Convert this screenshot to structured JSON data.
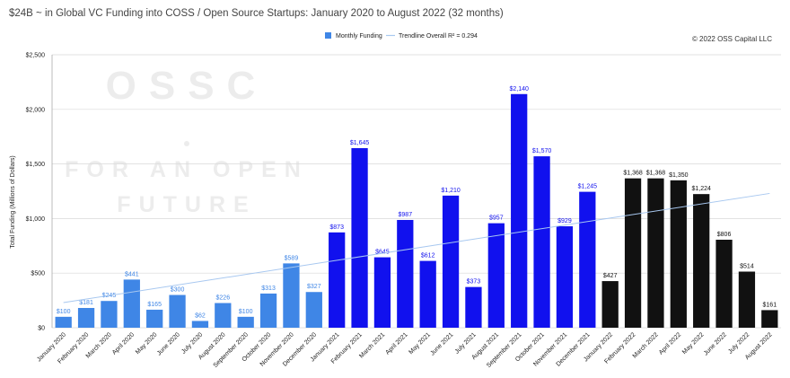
{
  "chart_data": {
    "type": "bar",
    "title": "$24B ~ in Global VC Funding into COSS / Open Source Startups: January 2020 to August 2022 (32 months)",
    "copyright": "© 2022 OSS Capital LLC",
    "ylabel": "Total Funding (Millions of Dollars)",
    "watermark": [
      "OSSC",
      "FOR AN OPEN",
      "FUTURE"
    ],
    "categories": [
      "January 2020",
      "February 2020",
      "March 2020",
      "April 2020",
      "May 2020",
      "June 2020",
      "July 2020",
      "August 2020",
      "September 2020",
      "October 2020",
      "November 2020",
      "December 2020",
      "January 2021",
      "February 2021",
      "March 2021",
      "April 2021",
      "May 2021",
      "June 2021",
      "July 2021",
      "August 2021",
      "September 2021",
      "October 2021",
      "November 2021",
      "December 2021",
      "January 2022",
      "February 2022",
      "March 2022",
      "April 2022",
      "May 2022",
      "June 2022",
      "July 2022",
      "August 2022"
    ],
    "series": [
      {
        "name": "Monthly Funding",
        "color": "#3f86e6",
        "values": [
          100,
          181,
          245,
          441,
          165,
          300,
          62,
          226,
          100,
          313,
          589,
          327,
          873,
          1645,
          645,
          987,
          612,
          1210,
          373,
          957,
          2140,
          1570,
          929,
          1245,
          427,
          1368,
          1368,
          1350,
          1224,
          806,
          514,
          161
        ],
        "value_labels": [
          "$100",
          "$181",
          "$245",
          "$441",
          "$165",
          "$300",
          "$62",
          "$226",
          "$100",
          "$313",
          "$589",
          "$327",
          "$873",
          "$1,645",
          "$645",
          "$987",
          "$612",
          "$1,210",
          "$373",
          "$957",
          "$2,140",
          "$1,570",
          "$929",
          "$1,245",
          "$427",
          "$1,368",
          "$1,368",
          "$1,350",
          "$1,224",
          "$806",
          "$514",
          "$161"
        ],
        "colors": [
          "#3f86e6",
          "#3f86e6",
          "#3f86e6",
          "#3f86e6",
          "#3f86e6",
          "#3f86e6",
          "#3f86e6",
          "#3f86e6",
          "#3f86e6",
          "#3f86e6",
          "#3f86e6",
          "#3f86e6",
          "#1111ee",
          "#1111ee",
          "#1111ee",
          "#1111ee",
          "#1111ee",
          "#1111ee",
          "#1111ee",
          "#1111ee",
          "#1111ee",
          "#1111ee",
          "#1111ee",
          "#1111ee",
          "#111111",
          "#111111",
          "#111111",
          "#111111",
          "#111111",
          "#111111",
          "#111111",
          "#111111"
        ]
      }
    ],
    "trendline": {
      "name": "Trendline Overall R² = 0.294",
      "color": "#a8c8f0",
      "values": [
        230,
        1230
      ]
    },
    "ylim": [
      0,
      2500
    ],
    "yticks": [
      {
        "value": 0,
        "label": "$0"
      },
      {
        "value": 500,
        "label": "$500"
      },
      {
        "value": 1000,
        "label": "$1,000"
      },
      {
        "value": 1500,
        "label": "$1,500"
      },
      {
        "value": 2000,
        "label": "$2,000"
      },
      {
        "value": 2500,
        "label": "$2,500"
      }
    ],
    "grid": true
  }
}
